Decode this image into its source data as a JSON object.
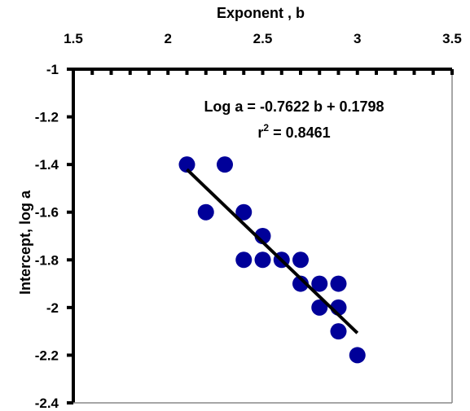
{
  "chart_data": {
    "type": "scatter",
    "title": "",
    "xlabel": "Exponent , b",
    "ylabel": "Intercept, log a",
    "xlim": [
      1.5,
      3.5
    ],
    "ylim": [
      -2.4,
      -1
    ],
    "x_axis_position": "top",
    "x_ticks": [
      "1.5",
      "2",
      "2.5",
      "3",
      "3.5"
    ],
    "y_ticks": [
      "-1",
      "-1.2",
      "-1.4",
      "-1.6",
      "-1.8",
      "-2",
      "-2.2",
      "-2.4"
    ],
    "grid": false,
    "series": [
      {
        "marker_color": "#000099",
        "points": [
          [
            2.1,
            -1.4
          ],
          [
            2.3,
            -1.4
          ],
          [
            2.2,
            -1.6
          ],
          [
            2.4,
            -1.6
          ],
          [
            2.5,
            -1.7
          ],
          [
            2.4,
            -1.8
          ],
          [
            2.5,
            -1.8
          ],
          [
            2.6,
            -1.8
          ],
          [
            2.7,
            -1.8
          ],
          [
            2.7,
            -1.9
          ],
          [
            2.8,
            -1.9
          ],
          [
            2.9,
            -1.9
          ],
          [
            2.8,
            -2.0
          ],
          [
            2.9,
            -2.0
          ],
          [
            2.9,
            -2.1
          ],
          [
            3.0,
            -2.2
          ]
        ]
      }
    ],
    "trendline": {
      "slope": -0.7622,
      "intercept": 0.1798,
      "x_range": [
        2.1,
        3.0
      ],
      "color": "#000000"
    },
    "annotations": {
      "equation": "Log a = -0.7622 b + 0.1798",
      "r2_prefix": "r",
      "r2_sup": "2",
      "r2_value": " = 0.8461"
    }
  }
}
